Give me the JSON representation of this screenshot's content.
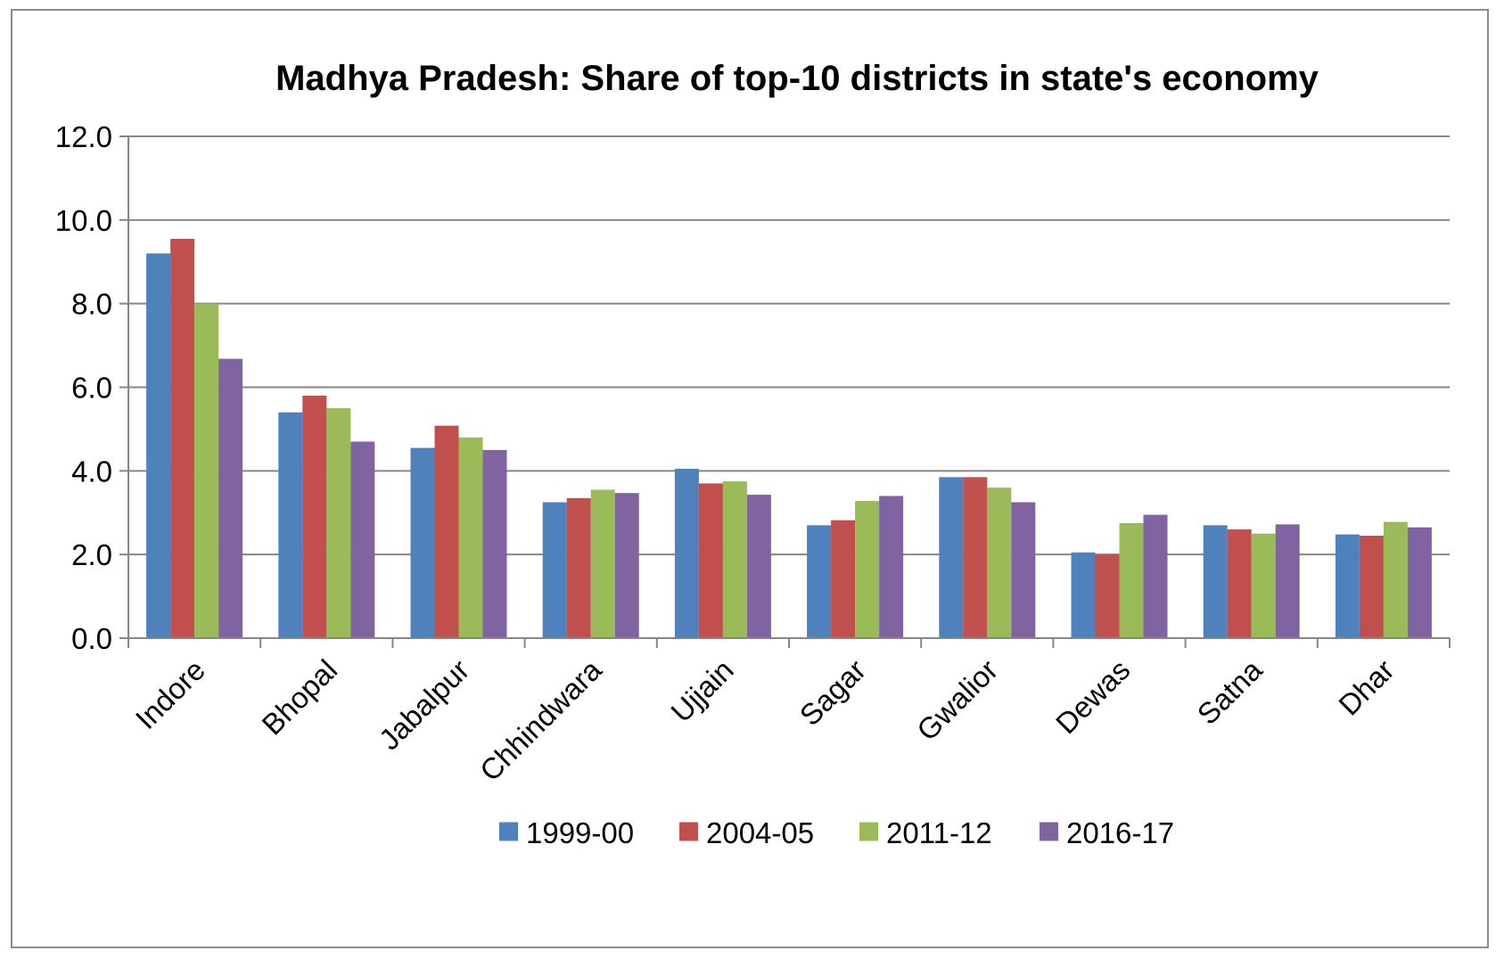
{
  "chart_data": {
    "type": "bar",
    "title": "Madhya Pradesh: Share of top-10 districts in state's economy",
    "xlabel": "",
    "ylabel": "",
    "ylim": [
      0,
      12
    ],
    "y_ticks": [
      "0.0",
      "2.0",
      "4.0",
      "6.0",
      "8.0",
      "10.0",
      "12.0"
    ],
    "grid": true,
    "legend_position": "bottom",
    "categories": [
      "Indore",
      "Bhopal",
      "Jabalpur",
      "Chhindwara",
      "Ujjain",
      "Sagar",
      "Gwalior",
      "Dewas",
      "Satna",
      "Dhar"
    ],
    "series": [
      {
        "name": "1999-00",
        "color": "#4f81bd",
        "values": [
          9.2,
          5.4,
          4.55,
          3.25,
          4.05,
          2.7,
          3.85,
          2.05,
          2.7,
          2.48
        ]
      },
      {
        "name": "2004-05",
        "color": "#c0504d",
        "values": [
          9.55,
          5.8,
          5.08,
          3.35,
          3.7,
          2.82,
          3.85,
          2.0,
          2.6,
          2.45
        ]
      },
      {
        "name": "2011-12",
        "color": "#9bbb59",
        "values": [
          8.0,
          5.5,
          4.8,
          3.55,
          3.75,
          3.28,
          3.6,
          2.75,
          2.5,
          2.78
        ]
      },
      {
        "name": "2016-17",
        "color": "#8064a2",
        "values": [
          6.68,
          4.7,
          4.5,
          3.47,
          3.43,
          3.4,
          3.25,
          2.95,
          2.72,
          2.65
        ]
      }
    ]
  }
}
